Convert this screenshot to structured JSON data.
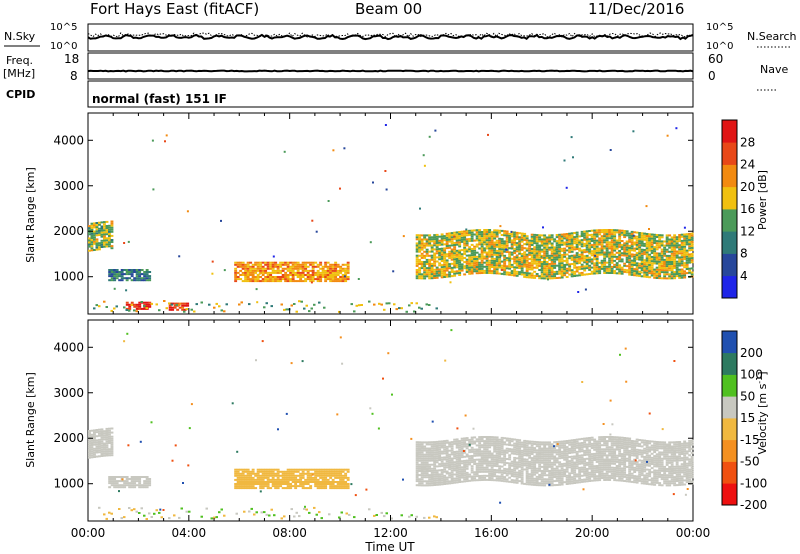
{
  "header": {
    "station": "Fort Hays East (fitACF)",
    "beam": "Beam 00",
    "date": "11/Dec/2016"
  },
  "side_labels": {
    "nsky": "N.Sky",
    "nsearch": "N.Search",
    "freq": "Freq.",
    "freq_unit": "[MHz]",
    "nave": "Nave",
    "cpid": "CPID"
  },
  "cpid_text": "normal (fast) 151 IF",
  "colors": {
    "power": [
      "#1f25e8",
      "#27479b",
      "#2f7a78",
      "#4b9a59",
      "#f0c010",
      "#f28a10",
      "#e84818",
      "#e01515"
    ],
    "velocity": [
      "#ee1010",
      "#f05010",
      "#f49020",
      "#f0b840",
      "#c8c8c0",
      "#50c020",
      "#2d7a60",
      "#2050b0"
    ]
  },
  "chart_data": [
    {
      "type": "line",
      "title": "",
      "series": [
        {
          "name": "N.Sky"
        },
        {
          "name": "N.Search"
        }
      ],
      "y_ticks": [
        "10^5",
        "10^0"
      ],
      "y2_ticks": [
        "10^5",
        "10^0"
      ],
      "x_range": [
        0,
        24
      ]
    },
    {
      "type": "line",
      "series": [
        {
          "name": "Freq."
        },
        {
          "name": "Nave"
        }
      ],
      "y_ticks": [
        "18",
        "8"
      ],
      "y2_ticks": [
        "60",
        "0"
      ],
      "x_range": [
        0,
        24
      ]
    },
    {
      "type": "heatmap",
      "quantity": "Power",
      "ylabel": "Slant Range [km]",
      "yticks": [
        1000,
        2000,
        3000,
        4000
      ],
      "ylim": [
        180,
        4600
      ],
      "xlim": [
        0,
        24
      ],
      "colorbar_label": "Power [dB]",
      "colorbar_ticks": [
        4,
        8,
        12,
        16,
        20,
        24,
        28
      ],
      "colorbar_range": [
        0,
        32
      ],
      "regions": [
        {
          "t0": 0.0,
          "t1": 0.9,
          "r0": 1550,
          "r1": 2150,
          "v": 16
        },
        {
          "t0": 0.8,
          "t1": 2.4,
          "r0": 900,
          "r1": 1150,
          "v": 10
        },
        {
          "t0": 1.5,
          "t1": 2.4,
          "r0": 270,
          "r1": 450,
          "v": 30
        },
        {
          "t0": 3.2,
          "t1": 3.9,
          "r0": 250,
          "r1": 400,
          "v": 28
        },
        {
          "t0": 5.8,
          "t1": 10.3,
          "r0": 880,
          "r1": 1300,
          "v": 21
        },
        {
          "t0": 13.0,
          "t1": 24.0,
          "r0": 1000,
          "r1": 1950,
          "v": 17
        }
      ]
    },
    {
      "type": "heatmap",
      "quantity": "Velocity",
      "ylabel": "Slant Range [km]",
      "xlabel": "Time UT",
      "xticks": [
        "00:00",
        "04:00",
        "08:00",
        "12:00",
        "16:00",
        "20:00",
        "00:00"
      ],
      "yticks": [
        1000,
        2000,
        3000,
        4000
      ],
      "ylim": [
        180,
        4600
      ],
      "xlim": [
        0,
        24
      ],
      "colorbar_label": "Velocity [m s^-1]",
      "colorbar_ticks": [
        -200,
        -100,
        -50,
        -15,
        15,
        50,
        100,
        200
      ],
      "regions": [
        {
          "t0": 0.0,
          "t1": 0.9,
          "r0": 1550,
          "r1": 2150,
          "v": 0
        },
        {
          "t0": 0.8,
          "t1": 2.4,
          "r0": 900,
          "r1": 1150,
          "v": 0
        },
        {
          "t0": 5.8,
          "t1": 10.3,
          "r0": 880,
          "r1": 1300,
          "v": -40
        },
        {
          "t0": 13.0,
          "t1": 24.0,
          "r0": 1000,
          "r1": 1950,
          "v": 0
        }
      ]
    }
  ]
}
